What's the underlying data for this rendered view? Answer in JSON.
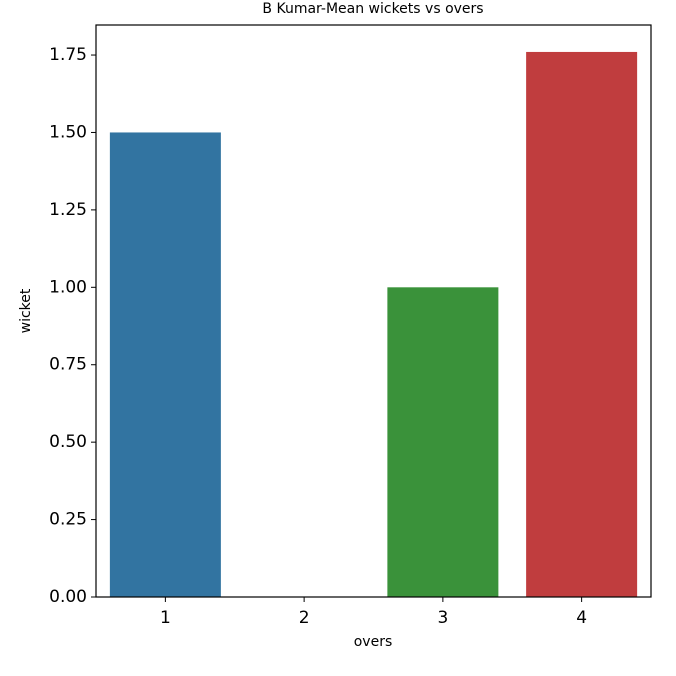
{
  "chart_data": {
    "type": "bar",
    "title": "B Kumar-Mean wickets vs overs",
    "x_label": "overs",
    "y_label": "wicket",
    "categories": [
      "1",
      "2",
      "3",
      "4"
    ],
    "values": [
      1.5,
      0,
      1.0,
      1.76
    ],
    "colors": [
      "#3274a1",
      "#e1812c",
      "#3a923a",
      "#c03d3e"
    ],
    "ylim": [
      0,
      1.847
    ],
    "yticks": [
      {
        "value": 0,
        "label": "0.00"
      },
      {
        "value": 0.25,
        "label": "0.25"
      },
      {
        "value": 0.5,
        "label": "0.50"
      },
      {
        "value": 0.75,
        "label": "0.75"
      },
      {
        "value": 1.0,
        "label": "1.00"
      },
      {
        "value": 1.25,
        "label": "1.25"
      },
      {
        "value": 1.5,
        "label": "1.50"
      },
      {
        "value": 1.75,
        "label": "1.75"
      }
    ],
    "grid": false
  }
}
